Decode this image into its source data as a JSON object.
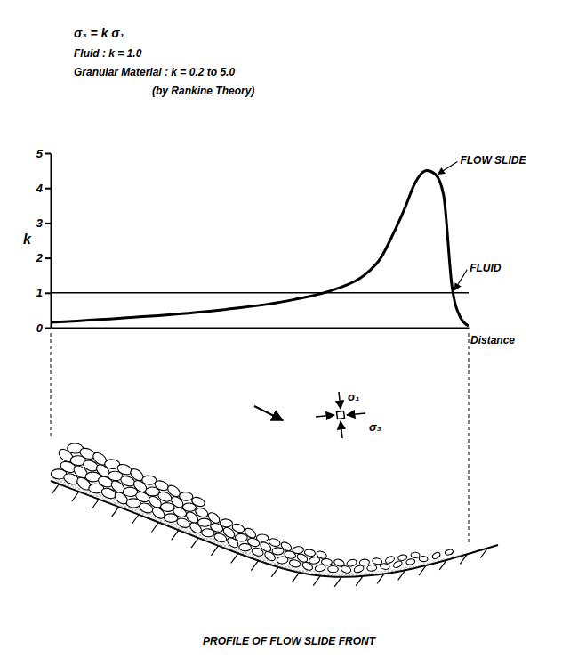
{
  "header": {
    "equation": "σ₃ = k σ₁",
    "lines": [
      "Fluid : k = 1.0",
      "Granular Material : k = 0.2 to 5.0",
      "(by Rankine Theory)"
    ]
  },
  "chart_data": {
    "type": "line",
    "y_label": "k",
    "x_label": "Distance",
    "x": [
      0,
      20,
      40,
      58,
      68,
      75,
      79,
      82,
      85,
      87,
      90,
      92,
      94,
      96,
      98,
      100
    ],
    "series": [
      {
        "name": "FLOW SLIDE",
        "color": "#000000",
        "values": [
          0.15,
          0.3,
          0.5,
          0.8,
          1.1,
          1.5,
          2.0,
          2.7,
          3.5,
          4.1,
          4.5,
          4.4,
          3.8,
          1.2,
          0.3,
          0.05
        ]
      },
      {
        "name": "FLUID",
        "color": "#000000",
        "values": [
          1,
          1,
          1,
          1,
          1,
          1,
          1,
          1,
          1,
          1,
          1,
          1,
          1,
          1,
          1,
          1
        ]
      }
    ],
    "xlim": [
      0,
      100
    ],
    "ylim": [
      0,
      5
    ],
    "yticks": [
      0,
      1,
      2,
      3,
      4,
      5
    ],
    "tick_labels": "y"
  },
  "profile": {
    "title": "PROFILE OF FLOW SLIDE FRONT",
    "stress_labels": [
      "σ₁",
      "σ₃"
    ]
  }
}
